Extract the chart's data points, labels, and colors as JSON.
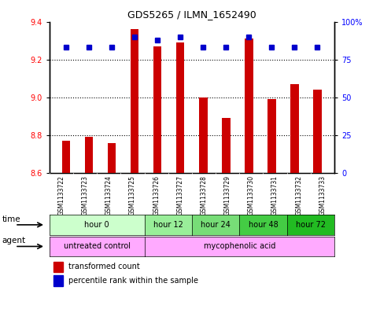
{
  "title": "GDS5265 / ILMN_1652490",
  "samples": [
    "GSM1133722",
    "GSM1133723",
    "GSM1133724",
    "GSM1133725",
    "GSM1133726",
    "GSM1133727",
    "GSM1133728",
    "GSM1133729",
    "GSM1133730",
    "GSM1133731",
    "GSM1133732",
    "GSM1133733"
  ],
  "bar_values": [
    8.77,
    8.79,
    8.76,
    9.36,
    9.27,
    9.29,
    9.0,
    8.89,
    9.31,
    8.99,
    9.07,
    9.04
  ],
  "bar_bottom": 8.6,
  "percentile_values": [
    83,
    83,
    83,
    90,
    88,
    90,
    83,
    83,
    90,
    83,
    83,
    83
  ],
  "ylim": [
    8.6,
    9.4
  ],
  "y2lim": [
    0,
    100
  ],
  "yticks": [
    8.6,
    8.8,
    9.0,
    9.2,
    9.4
  ],
  "y2ticks": [
    0,
    25,
    50,
    75,
    100
  ],
  "y2ticklabels": [
    "0",
    "25",
    "50",
    "75",
    "100%"
  ],
  "bar_color": "#cc0000",
  "dot_color": "#0000cc",
  "time_groups": [
    {
      "label": "hour 0",
      "start": 0,
      "end": 4,
      "color": "#ccffcc"
    },
    {
      "label": "hour 12",
      "start": 4,
      "end": 6,
      "color": "#99ee99"
    },
    {
      "label": "hour 24",
      "start": 6,
      "end": 8,
      "color": "#77dd77"
    },
    {
      "label": "hour 48",
      "start": 8,
      "end": 10,
      "color": "#44cc44"
    },
    {
      "label": "hour 72",
      "start": 10,
      "end": 12,
      "color": "#22bb22"
    }
  ],
  "agent_groups": [
    {
      "label": "untreated control",
      "start": 0,
      "end": 4
    },
    {
      "label": "mycophenolic acid",
      "start": 4,
      "end": 12
    }
  ],
  "agent_color": "#ffaaff",
  "legend_bar_label": "transformed count",
  "legend_dot_label": "percentile rank within the sample",
  "time_label": "time",
  "agent_label": "agent",
  "sample_bg": "#cccccc",
  "plot_bg": "#ffffff"
}
